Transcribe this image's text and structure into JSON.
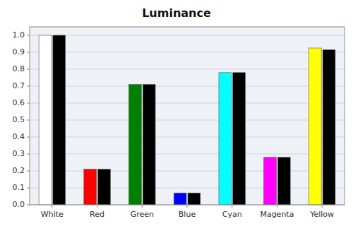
{
  "chart_data": {
    "type": "bar",
    "title": "Luminance",
    "categories": [
      "White",
      "Red",
      "Green",
      "Blue",
      "Cyan",
      "Magenta",
      "Yellow"
    ],
    "series": [
      {
        "values": [
          1.0,
          0.21,
          0.71,
          0.07,
          0.78,
          0.28,
          0.925
        ],
        "colors": [
          "#ffffff",
          "#ff0000",
          "#008000",
          "#0000ff",
          "#00ffff",
          "#ff00ff",
          "#ffff00"
        ]
      },
      {
        "values": [
          1.0,
          0.21,
          0.71,
          0.07,
          0.78,
          0.28,
          0.915
        ],
        "color": "#000000"
      }
    ],
    "ylim": [
      0.0,
      1.05
    ],
    "yticks": [
      {
        "value": 0.0,
        "label": "0.0"
      },
      0.1,
      0.2,
      0.3,
      0.4,
      0.5,
      0.6,
      0.7,
      0.8,
      0.9,
      {
        "value": 1.0,
        "label": "1.0"
      }
    ],
    "grid": true
  }
}
